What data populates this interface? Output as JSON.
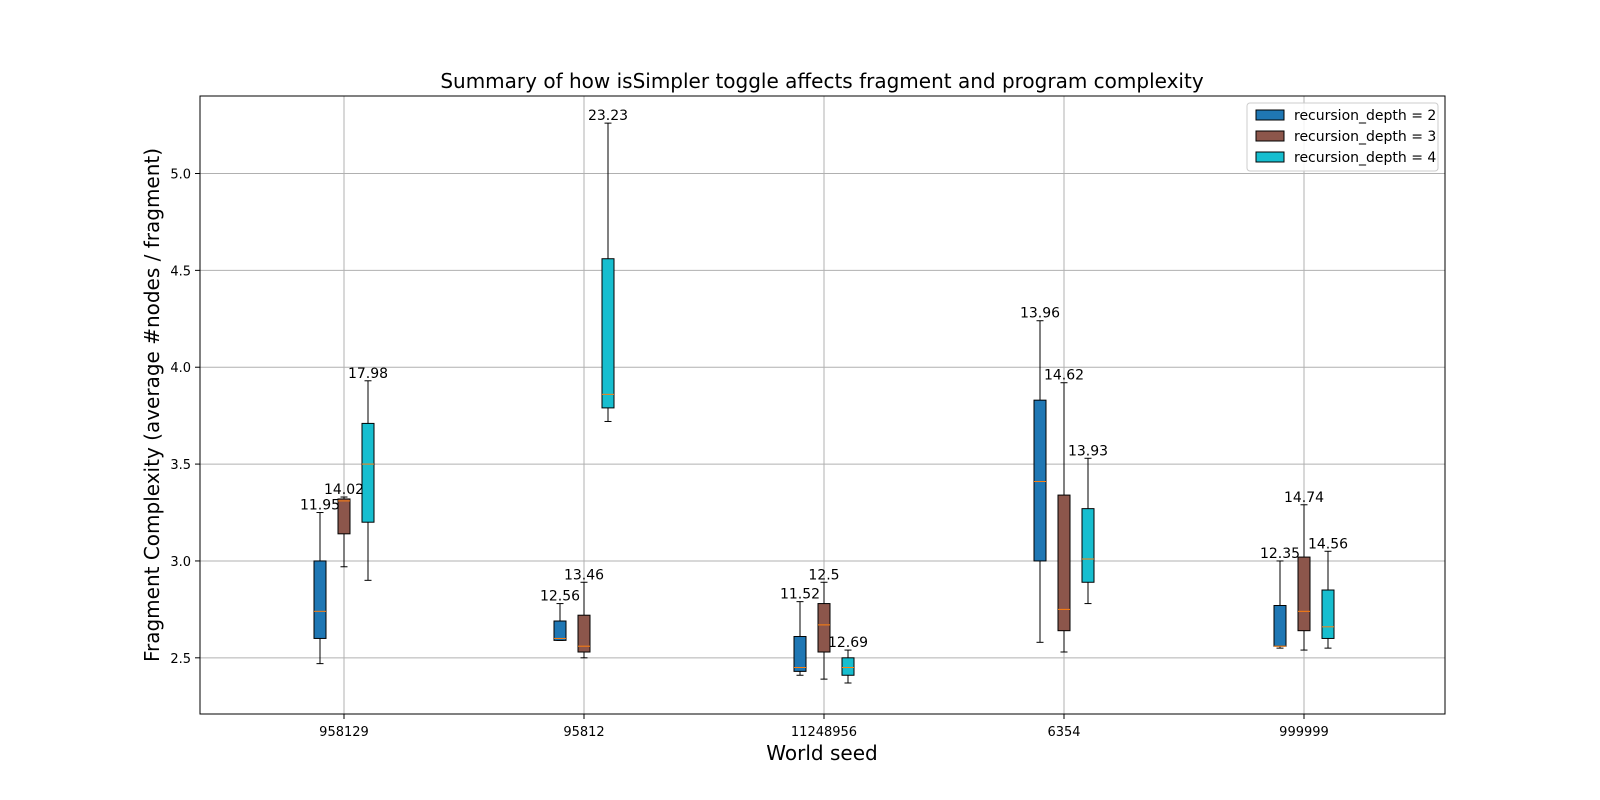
{
  "chart_data": {
    "type": "boxplot",
    "title": "Summary of how isSimpler toggle affects fragment and program complexity",
    "xlabel": "World seed",
    "ylabel": "Fragment Complexity (average #nodes / fragment)",
    "ylim": [
      2.21,
      5.4
    ],
    "yticks": [
      2.5,
      3.0,
      3.5,
      4.0,
      4.5,
      5.0
    ],
    "ytick_labels": [
      "2.5",
      "3.0",
      "3.5",
      "4.0",
      "4.5",
      "5.0"
    ],
    "grid": true,
    "legend_position": "upper right",
    "categories": [
      "958129",
      "95812",
      "11248956",
      "6354",
      "999999"
    ],
    "median_color": "#ff7f0e",
    "series": [
      {
        "name": "recursion_depth = 2",
        "color": "#1f77b4",
        "boxes": [
          {
            "whislo": 2.47,
            "q1": 2.6,
            "med": 2.74,
            "q3": 3.0,
            "whishi": 3.25,
            "label": "11.95"
          },
          {
            "whislo": 2.59,
            "q1": 2.59,
            "med": 2.6,
            "q3": 2.69,
            "whishi": 2.78,
            "label": "12.56"
          },
          {
            "whislo": 2.41,
            "q1": 2.43,
            "med": 2.45,
            "q3": 2.61,
            "whishi": 2.79,
            "label": "11.52"
          },
          {
            "whislo": 2.58,
            "q1": 3.0,
            "med": 3.41,
            "q3": 3.83,
            "whishi": 4.24,
            "label": "13.96"
          },
          {
            "whislo": 2.55,
            "q1": 2.56,
            "med": 2.56,
            "q3": 2.77,
            "whishi": 3.0,
            "label": "12.35"
          }
        ]
      },
      {
        "name": "recursion_depth = 3",
        "color": "#8c564b",
        "boxes": [
          {
            "whislo": 2.97,
            "q1": 3.14,
            "med": 3.31,
            "q3": 3.32,
            "whishi": 3.33,
            "label": "14.02"
          },
          {
            "whislo": 2.5,
            "q1": 2.53,
            "med": 2.56,
            "q3": 2.72,
            "whishi": 2.89,
            "label": "13.46"
          },
          {
            "whislo": 2.39,
            "q1": 2.53,
            "med": 2.67,
            "q3": 2.78,
            "whishi": 2.89,
            "label": "12.5"
          },
          {
            "whislo": 2.53,
            "q1": 2.64,
            "med": 2.75,
            "q3": 3.34,
            "whishi": 3.92,
            "label": "14.62"
          },
          {
            "whislo": 2.54,
            "q1": 2.64,
            "med": 2.74,
            "q3": 3.02,
            "whishi": 3.29,
            "label": "14.74"
          }
        ]
      },
      {
        "name": "recursion_depth = 4",
        "color": "#17becf",
        "boxes": [
          {
            "whislo": 2.9,
            "q1": 3.2,
            "med": 3.5,
            "q3": 3.71,
            "whishi": 3.93,
            "label": "17.98"
          },
          {
            "whislo": 3.72,
            "q1": 3.79,
            "med": 3.86,
            "q3": 4.56,
            "whishi": 5.26,
            "label": "23.23"
          },
          {
            "whislo": 2.37,
            "q1": 2.41,
            "med": 2.45,
            "q3": 2.5,
            "whishi": 2.54,
            "label": "12.69"
          },
          {
            "whislo": 2.78,
            "q1": 2.89,
            "med": 3.01,
            "q3": 3.27,
            "whishi": 3.53,
            "label": "13.93"
          },
          {
            "whislo": 2.55,
            "q1": 2.6,
            "med": 2.66,
            "q3": 2.85,
            "whishi": 3.05,
            "label": "14.56"
          }
        ]
      }
    ]
  }
}
